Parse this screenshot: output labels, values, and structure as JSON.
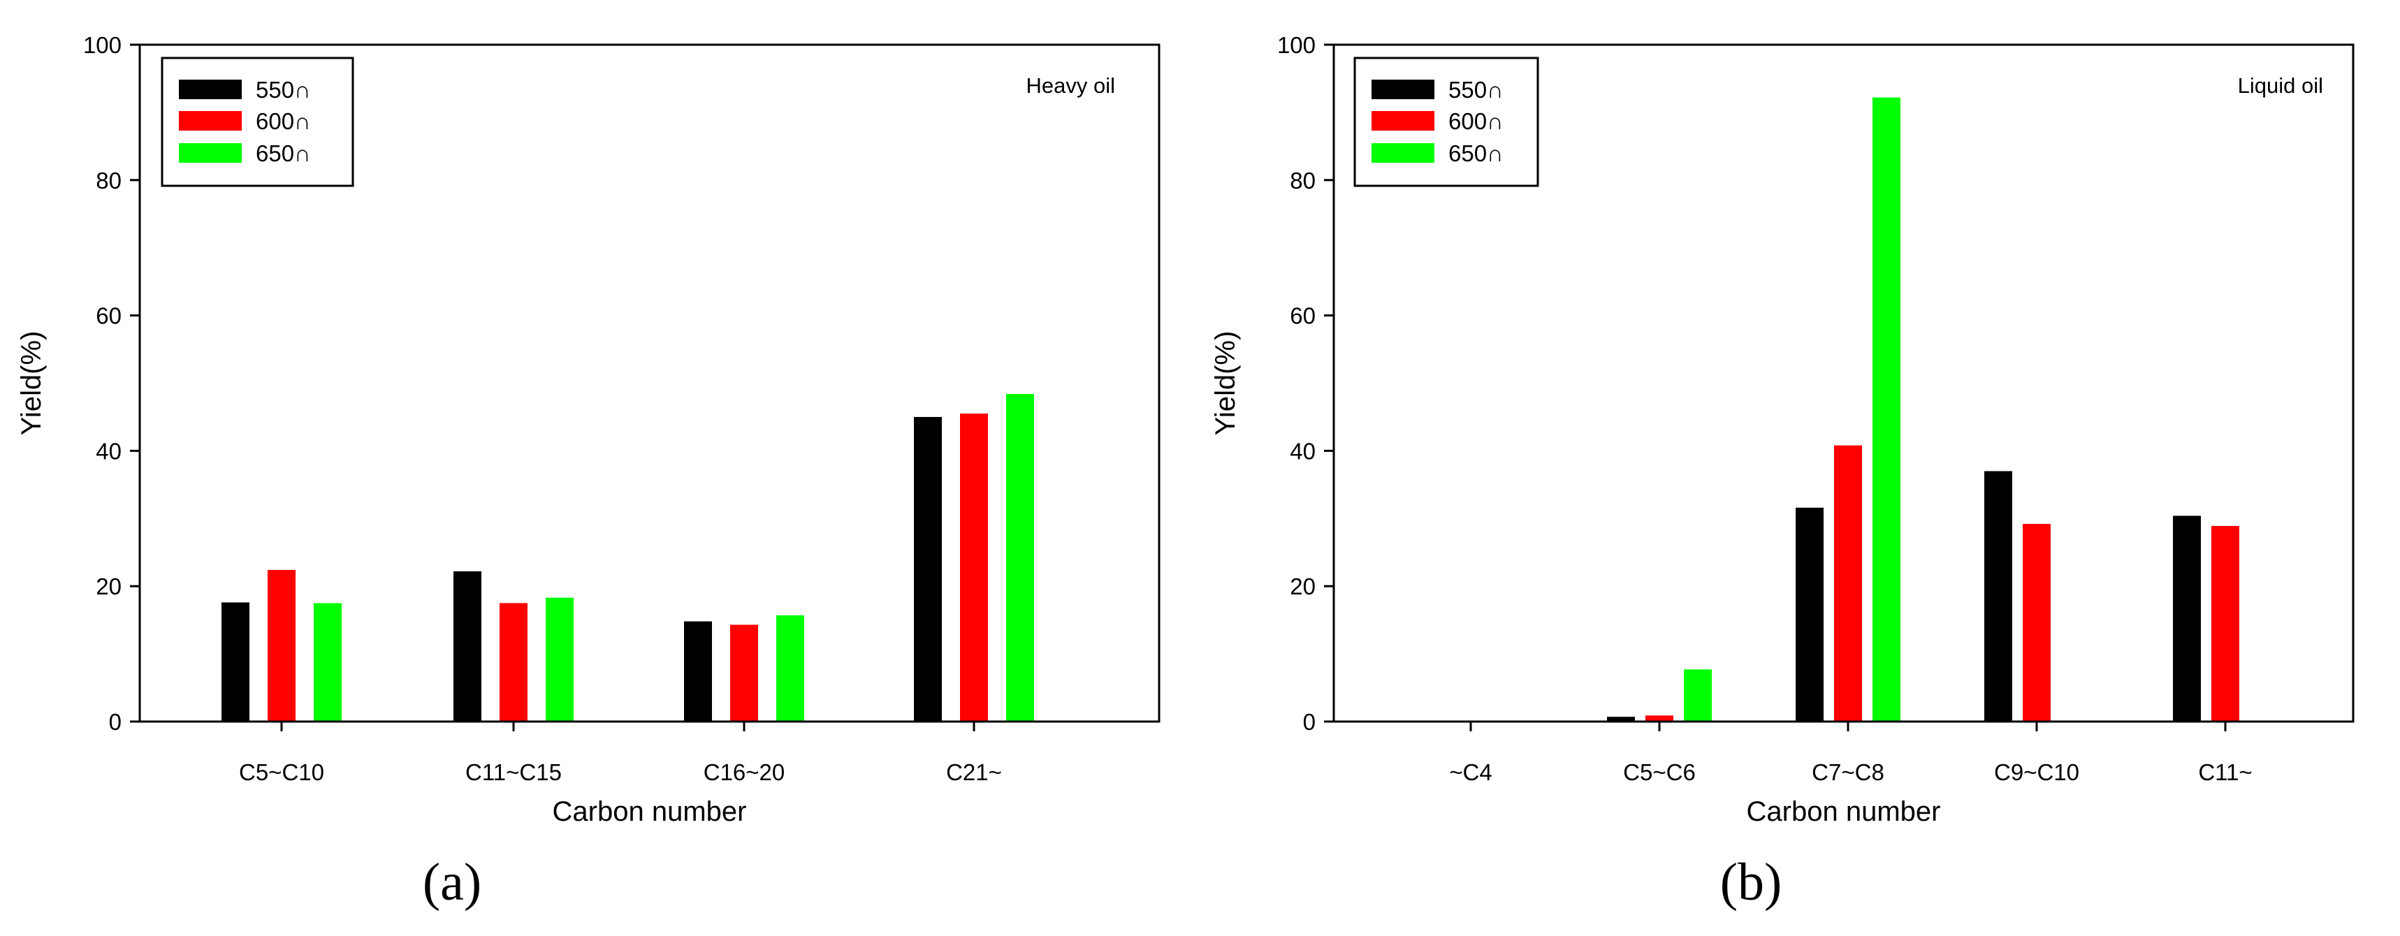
{
  "chart_data": [
    {
      "type": "bar",
      "panel_label": "(a)",
      "annotation": "Heavy oil",
      "xlabel": "Carbon number",
      "ylabel": "Yield(%)",
      "ylim": [
        0,
        100
      ],
      "yticks": [
        0,
        20,
        40,
        60,
        80,
        100
      ],
      "grid": false,
      "legend_position": "top-left",
      "categories": [
        "C5~C10",
        "C11~C15",
        "C16~20",
        "C21~"
      ],
      "series": [
        {
          "name": "550∩",
          "color": "#000000",
          "values": [
            17.6,
            22.2,
            14.8,
            45.0
          ]
        },
        {
          "name": "600∩",
          "color": "#ff0000",
          "values": [
            22.4,
            17.5,
            14.3,
            45.5
          ]
        },
        {
          "name": "650∩",
          "color": "#00ff00",
          "values": [
            17.5,
            18.3,
            15.7,
            48.4
          ]
        }
      ]
    },
    {
      "type": "bar",
      "panel_label": "(b)",
      "annotation": "Liquid oil",
      "xlabel": "Carbon number",
      "ylabel": "Yield(%)",
      "ylim": [
        0,
        100
      ],
      "yticks": [
        0,
        20,
        40,
        60,
        80,
        100
      ],
      "grid": false,
      "legend_position": "top-left",
      "categories": [
        "~C4",
        "C5~C6",
        "C7~C8",
        "C9~C10",
        "C11~"
      ],
      "series": [
        {
          "name": "550∩",
          "color": "#000000",
          "values": [
            0,
            0.7,
            31.6,
            37.0,
            30.4
          ]
        },
        {
          "name": "600∩",
          "color": "#ff0000",
          "values": [
            0,
            0.9,
            40.8,
            29.2,
            28.9
          ]
        },
        {
          "name": "650∩",
          "color": "#00ff00",
          "values": [
            0,
            7.7,
            92.2,
            0,
            0
          ]
        }
      ]
    }
  ]
}
